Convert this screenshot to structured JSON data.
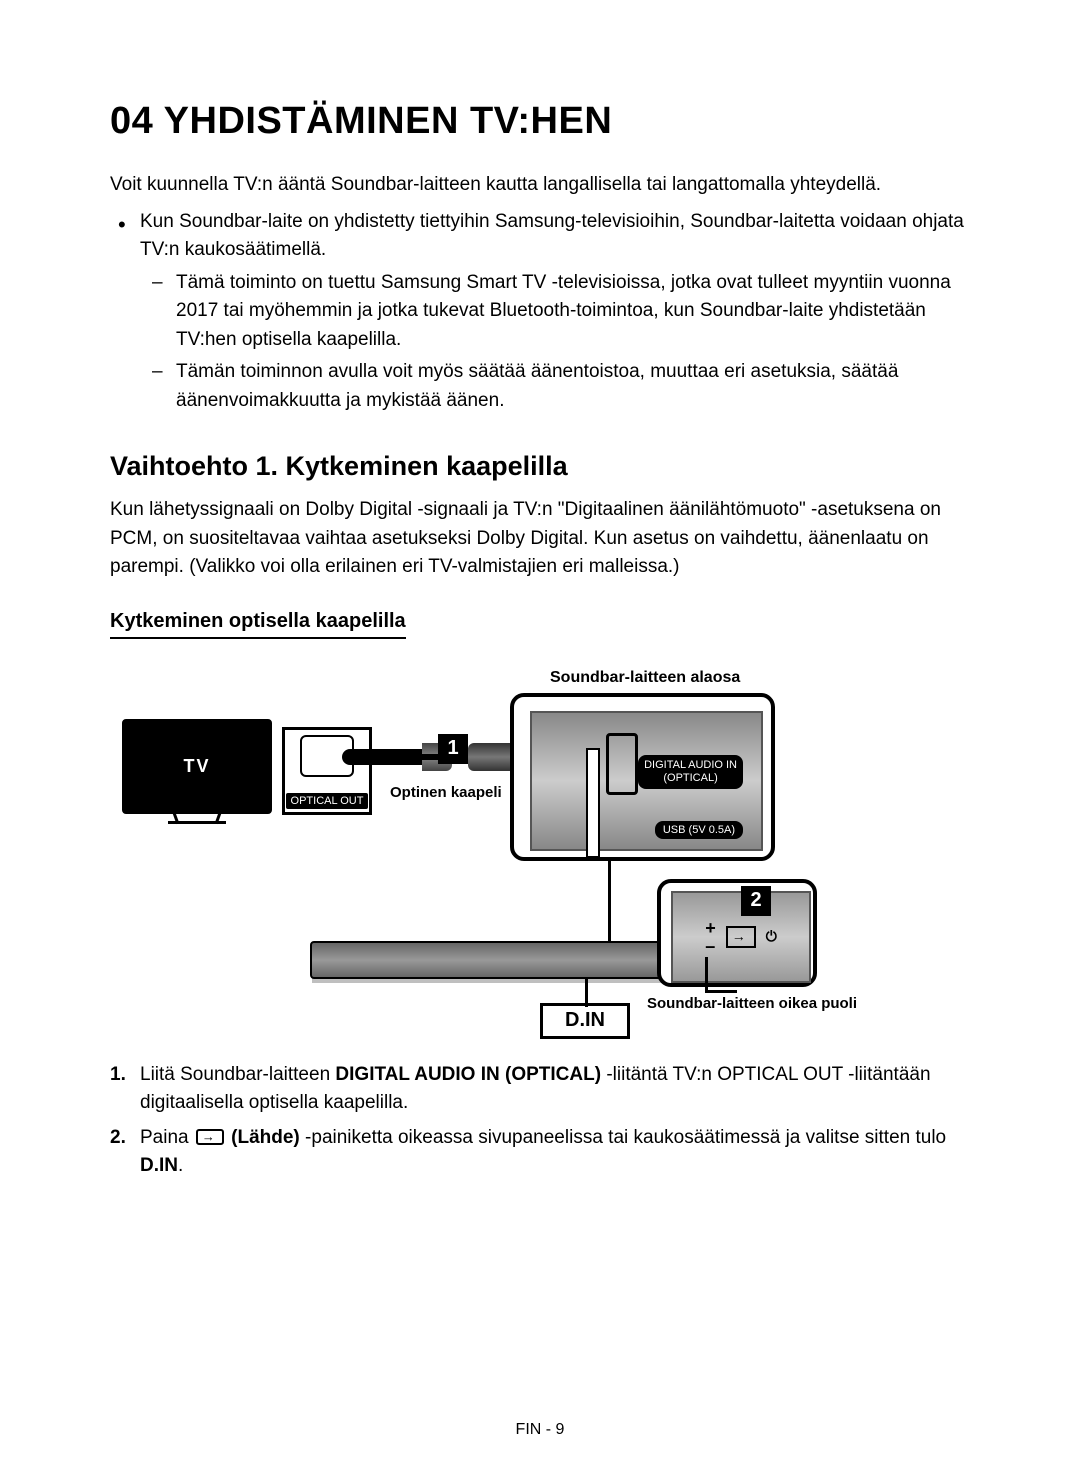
{
  "chapter": {
    "number": "04",
    "title": "YHDISTÄMINEN TV:HEN"
  },
  "intro": "Voit kuunnella TV:n ääntä Soundbar-laitteen kautta langallisella tai langattomalla yhteydellä.",
  "bullet1": "Kun Soundbar-laite on yhdistetty tiettyihin Samsung-televisioihin, Soundbar-laitetta voidaan ohjata TV:n kaukosäätimellä.",
  "dash1": "Tämä toiminto on tuettu Samsung Smart TV -televisioissa, jotka ovat tulleet myyntiin vuonna 2017 tai myöhemmin ja jotka tukevat Bluetooth-toimintoa, kun Soundbar-laite yhdistetään TV:hen optisella kaapelilla.",
  "dash2": "Tämän toiminnon avulla voit myös säätää äänentoistoa, muuttaa eri asetuksia, säätää äänenvoimakkuutta ja mykistää äänen.",
  "section": "Vaihtoehto 1. Kytkeminen kaapelilla",
  "section_body": "Kun lähetyssignaali on Dolby Digital -signaali ja TV:n \"Digitaalinen äänilähtömuoto\" -asetuksena on PCM, on suositeltavaa vaihtaa asetukseksi Dolby Digital. Kun asetus on vaihdettu, äänenlaatu on parempi. (Valikko voi olla erilainen eri TV-valmistajien eri malleissa.)",
  "subheading": "Kytkeminen optisella kaapelilla",
  "diagram": {
    "top_label": "Soundbar-laitteen alaosa",
    "tv_label": "TV",
    "optical_out": "OPTICAL OUT",
    "cable_label": "Optinen kaapeli",
    "dai_line1": "DIGITAL AUDIO IN",
    "dai_line2": "(OPTICAL)",
    "usb_label": "USB (5V 0.5A)",
    "step1": "1",
    "step2": "2",
    "din": "D.IN",
    "right_label": "Soundbar-laitteen oikea puoli"
  },
  "steps": {
    "s1_num": "1.",
    "s1_a": "Liitä Soundbar-laitteen ",
    "s1_bold": "DIGITAL AUDIO IN (OPTICAL)",
    "s1_b": " -liitäntä TV:n OPTICAL OUT -liitäntään digitaalisella optisella kaapelilla.",
    "s2_num": "2.",
    "s2_a": "Paina ",
    "s2_bold": " (Lähde)",
    "s2_b": " -painiketta oikeassa sivupaneelissa tai kaukosäätimessä ja valitse sitten tulo ",
    "s2_c": "D.IN",
    "s2_d": "."
  },
  "footer": "FIN - 9"
}
